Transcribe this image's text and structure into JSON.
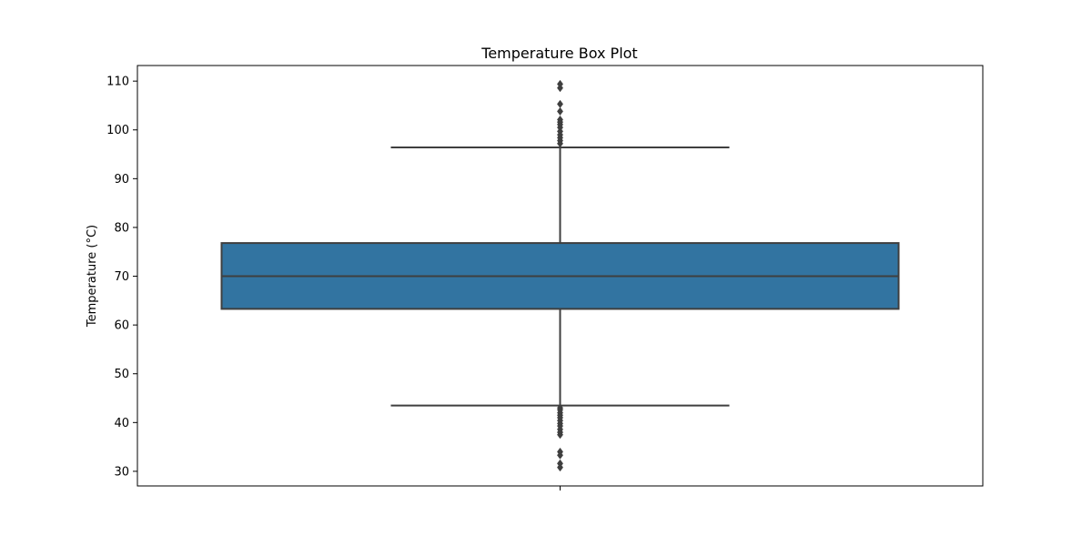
{
  "chart_data": {
    "type": "box",
    "title": "Temperature Box Plot",
    "xlabel": "",
    "ylabel": "Temperature (°C)",
    "ylim": [
      27,
      113.2
    ],
    "yticks": [
      30,
      40,
      50,
      60,
      70,
      80,
      90,
      100,
      110
    ],
    "grid": false,
    "colors": {
      "box": "#3274a1",
      "line": "#3f3f3f",
      "frame": "#000000"
    },
    "box": {
      "q1": 63.3,
      "median": 70.0,
      "q3": 76.8,
      "whisker_low": 43.5,
      "whisker_high": 96.4,
      "outliers": [
        97.2,
        97.8,
        98.4,
        99.0,
        99.7,
        100.5,
        101.1,
        101.6,
        102.1,
        103.8,
        105.3,
        108.6,
        109.4,
        43.0,
        42.6,
        42.0,
        41.5,
        41.0,
        40.4,
        39.8,
        39.3,
        38.6,
        38.0,
        37.5,
        34.0,
        33.3,
        31.6,
        30.8
      ]
    }
  }
}
